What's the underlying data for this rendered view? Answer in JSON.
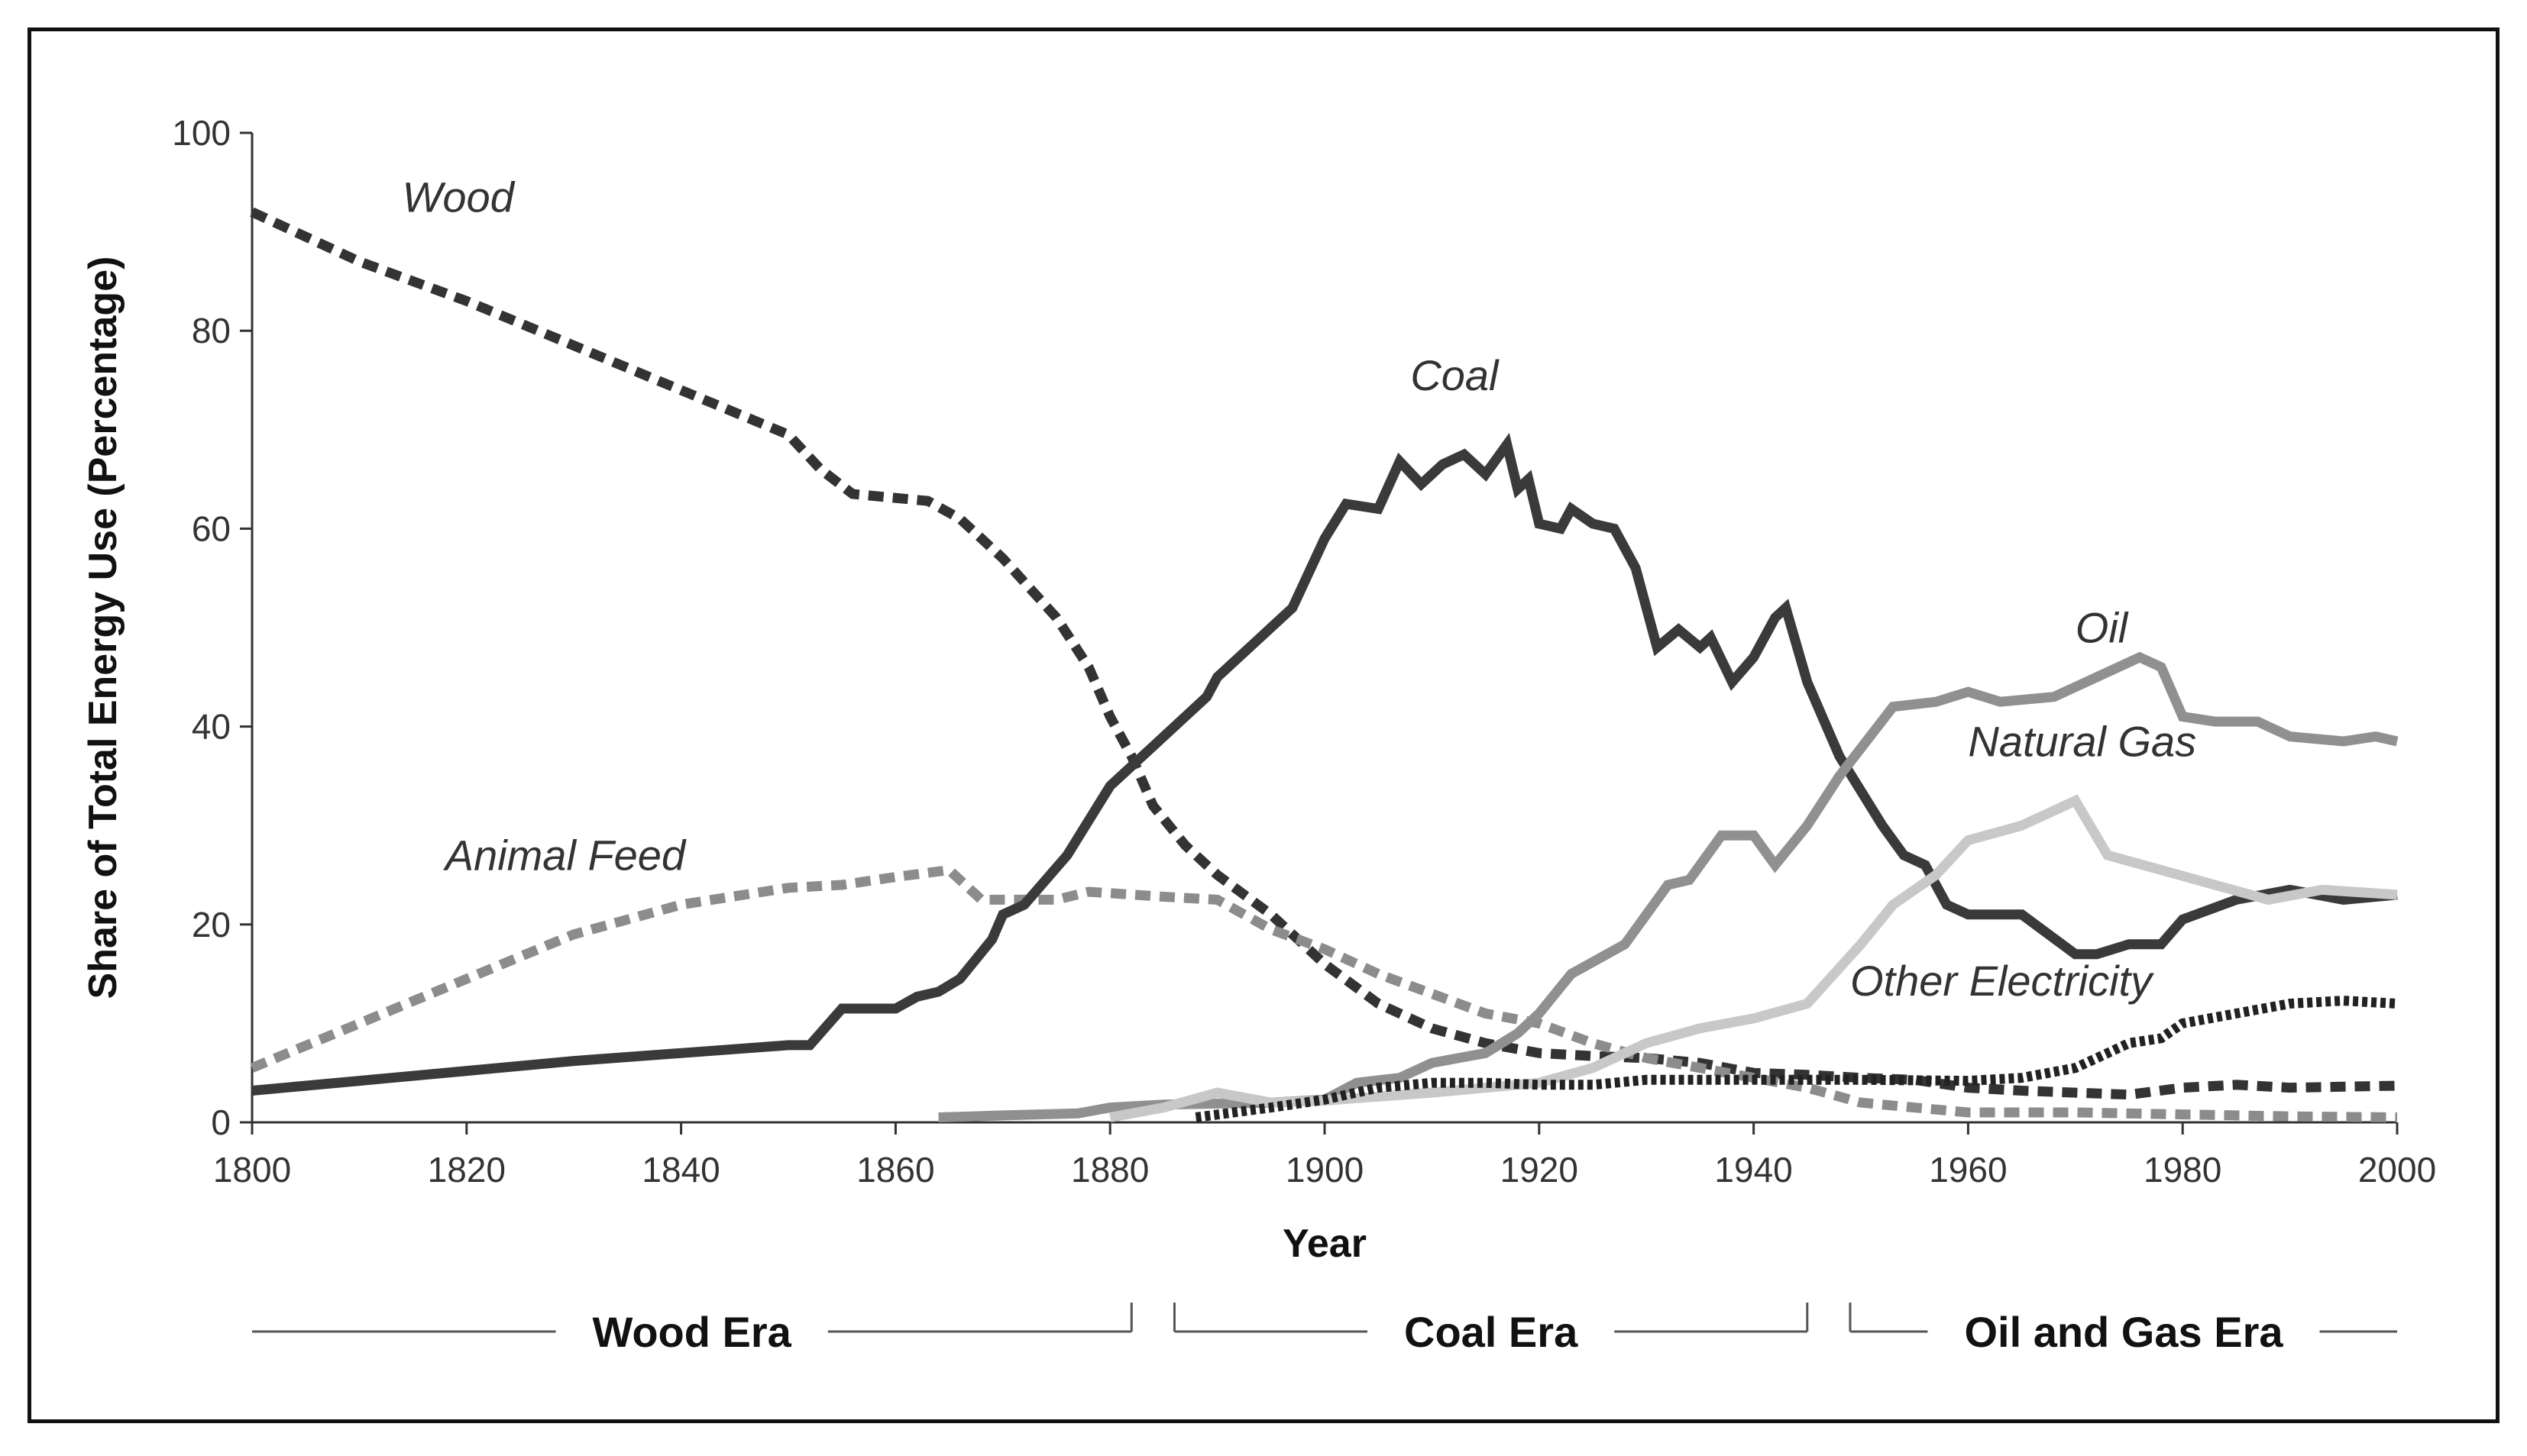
{
  "chart_data": {
    "type": "line",
    "title": "",
    "xlabel": "Year",
    "ylabel": "Share of Total Energy Use (Percentage)",
    "xlim": [
      1800,
      2000
    ],
    "ylim": [
      0,
      100
    ],
    "x_ticks": [
      "1800",
      "1820",
      "1840",
      "1860",
      "1880",
      "1900",
      "1920",
      "1940",
      "1960",
      "1980",
      "2000"
    ],
    "y_ticks": [
      "0",
      "20",
      "40",
      "60",
      "80",
      "100"
    ],
    "series": [
      {
        "name": "Wood",
        "color": "#333333",
        "style": "dashed",
        "points": [
          [
            1800,
            92
          ],
          [
            1810,
            87
          ],
          [
            1820,
            83
          ],
          [
            1830,
            78.5
          ],
          [
            1840,
            74
          ],
          [
            1850,
            69.5
          ],
          [
            1853,
            66
          ],
          [
            1856,
            63.5
          ],
          [
            1863,
            62.8
          ],
          [
            1866,
            61
          ],
          [
            1870,
            57
          ],
          [
            1875,
            51
          ],
          [
            1878,
            46
          ],
          [
            1880,
            41
          ],
          [
            1882,
            37
          ],
          [
            1884,
            32
          ],
          [
            1887,
            28
          ],
          [
            1890,
            25
          ],
          [
            1895,
            21
          ],
          [
            1900,
            16
          ],
          [
            1905,
            12
          ],
          [
            1910,
            9.5
          ],
          [
            1915,
            8
          ],
          [
            1920,
            7
          ],
          [
            1925,
            6.7
          ],
          [
            1930,
            6.5
          ],
          [
            1935,
            6
          ],
          [
            1940,
            5
          ],
          [
            1945,
            4.8
          ],
          [
            1950,
            4.5
          ],
          [
            1955,
            4.3
          ],
          [
            1960,
            3.5
          ],
          [
            1965,
            3.2
          ],
          [
            1970,
            3
          ],
          [
            1975,
            2.8
          ],
          [
            1980,
            3.5
          ],
          [
            1985,
            3.8
          ],
          [
            1990,
            3.5
          ],
          [
            1995,
            3.6
          ],
          [
            2000,
            3.7
          ]
        ]
      },
      {
        "name": "Animal Feed",
        "color": "#8c8c8c",
        "style": "dashed",
        "points": [
          [
            1800,
            5.5
          ],
          [
            1810,
            10
          ],
          [
            1820,
            14.5
          ],
          [
            1830,
            19
          ],
          [
            1840,
            22
          ],
          [
            1850,
            23.7
          ],
          [
            1855,
            24
          ],
          [
            1860,
            24.8
          ],
          [
            1865,
            25.5
          ],
          [
            1868,
            22.5
          ],
          [
            1875,
            22.5
          ],
          [
            1878,
            23.3
          ],
          [
            1885,
            22.8
          ],
          [
            1890,
            22.5
          ],
          [
            1895,
            19.5
          ],
          [
            1900,
            17.5
          ],
          [
            1905,
            15
          ],
          [
            1910,
            13
          ],
          [
            1915,
            11
          ],
          [
            1920,
            10
          ],
          [
            1925,
            8
          ],
          [
            1930,
            6.5
          ],
          [
            1935,
            5.5
          ],
          [
            1940,
            4.5
          ],
          [
            1945,
            3.5
          ],
          [
            1950,
            2
          ],
          [
            1955,
            1.5
          ],
          [
            1960,
            1
          ],
          [
            1970,
            1
          ],
          [
            1980,
            0.8
          ],
          [
            1990,
            0.6
          ],
          [
            2000,
            0.5
          ]
        ]
      },
      {
        "name": "Coal",
        "color": "#3a3a3a",
        "style": "solid",
        "points": [
          [
            1800,
            3.2
          ],
          [
            1810,
            4.2
          ],
          [
            1820,
            5.2
          ],
          [
            1830,
            6.2
          ],
          [
            1840,
            7
          ],
          [
            1850,
            7.8
          ],
          [
            1852,
            7.8
          ],
          [
            1855,
            11.5
          ],
          [
            1860,
            11.5
          ],
          [
            1862,
            12.7
          ],
          [
            1864,
            13.2
          ],
          [
            1866,
            14.5
          ],
          [
            1869,
            18.5
          ],
          [
            1870,
            21
          ],
          [
            1872,
            22
          ],
          [
            1876,
            27
          ],
          [
            1880,
            34
          ],
          [
            1885,
            39
          ],
          [
            1889,
            43
          ],
          [
            1890,
            45
          ],
          [
            1894,
            49
          ],
          [
            1897,
            52
          ],
          [
            1900,
            59
          ],
          [
            1902,
            62.5
          ],
          [
            1905,
            62
          ],
          [
            1907,
            66.8
          ],
          [
            1909,
            64.5
          ],
          [
            1911,
            66.5
          ],
          [
            1913,
            67.5
          ],
          [
            1915,
            65.5
          ],
          [
            1917,
            68.5
          ],
          [
            1918,
            64
          ],
          [
            1919,
            65
          ],
          [
            1920,
            60.5
          ],
          [
            1922,
            60
          ],
          [
            1923,
            62
          ],
          [
            1925,
            60.5
          ],
          [
            1927,
            60
          ],
          [
            1929,
            56
          ],
          [
            1931,
            48
          ],
          [
            1933,
            49.8
          ],
          [
            1935,
            48
          ],
          [
            1936,
            49
          ],
          [
            1938,
            44.5
          ],
          [
            1940,
            47
          ],
          [
            1942,
            51
          ],
          [
            1943,
            52
          ],
          [
            1945,
            44.5
          ],
          [
            1948,
            37
          ],
          [
            1952,
            30
          ],
          [
            1954,
            27
          ],
          [
            1956,
            26
          ],
          [
            1958,
            22
          ],
          [
            1960,
            21
          ],
          [
            1965,
            21
          ],
          [
            1970,
            17
          ],
          [
            1972,
            17
          ],
          [
            1975,
            18
          ],
          [
            1978,
            18
          ],
          [
            1980,
            20.5
          ],
          [
            1985,
            22.5
          ],
          [
            1990,
            23.5
          ],
          [
            1995,
            22.5
          ],
          [
            2000,
            23
          ]
        ]
      },
      {
        "name": "Oil",
        "color": "#909090",
        "style": "solid",
        "points": [
          [
            1864,
            0.5
          ],
          [
            1870,
            0.7
          ],
          [
            1877,
            0.9
          ],
          [
            1880,
            1.5
          ],
          [
            1885,
            1.8
          ],
          [
            1890,
            1.9
          ],
          [
            1895,
            2
          ],
          [
            1900,
            2.3
          ],
          [
            1903,
            4
          ],
          [
            1907,
            4.5
          ],
          [
            1910,
            6
          ],
          [
            1915,
            7
          ],
          [
            1918,
            9
          ],
          [
            1920,
            11
          ],
          [
            1923,
            15
          ],
          [
            1928,
            18
          ],
          [
            1932,
            24
          ],
          [
            1934,
            24.5
          ],
          [
            1937,
            29
          ],
          [
            1940,
            29
          ],
          [
            1942,
            26
          ],
          [
            1945,
            30
          ],
          [
            1948,
            35
          ],
          [
            1953,
            42
          ],
          [
            1957,
            42.5
          ],
          [
            1960,
            43.5
          ],
          [
            1963,
            42.5
          ],
          [
            1968,
            43
          ],
          [
            1972,
            45
          ],
          [
            1976,
            47
          ],
          [
            1978,
            46
          ],
          [
            1980,
            41
          ],
          [
            1983,
            40.5
          ],
          [
            1987,
            40.5
          ],
          [
            1990,
            39
          ],
          [
            1995,
            38.5
          ],
          [
            1998,
            39
          ],
          [
            2000,
            38.5
          ]
        ]
      },
      {
        "name": "Natural Gas",
        "color": "#c8c8c8",
        "style": "solid",
        "points": [
          [
            1880,
            0.5
          ],
          [
            1885,
            1.5
          ],
          [
            1890,
            3
          ],
          [
            1895,
            2
          ],
          [
            1900,
            2.2
          ],
          [
            1910,
            3
          ],
          [
            1920,
            4
          ],
          [
            1925,
            5.5
          ],
          [
            1930,
            8
          ],
          [
            1935,
            9.5
          ],
          [
            1940,
            10.5
          ],
          [
            1945,
            12
          ],
          [
            1950,
            18
          ],
          [
            1953,
            22
          ],
          [
            1957,
            25
          ],
          [
            1960,
            28.5
          ],
          [
            1965,
            30
          ],
          [
            1970,
            32.5
          ],
          [
            1973,
            27
          ],
          [
            1978,
            25.5
          ],
          [
            1983,
            24
          ],
          [
            1988,
            22.5
          ],
          [
            1993,
            23.5
          ],
          [
            2000,
            23
          ]
        ]
      },
      {
        "name": "Other Electricity",
        "color": "#222222",
        "style": "dotted",
        "points": [
          [
            1888,
            0.5
          ],
          [
            1895,
            1.5
          ],
          [
            1900,
            2.3
          ],
          [
            1905,
            3.5
          ],
          [
            1910,
            4
          ],
          [
            1915,
            4
          ],
          [
            1920,
            3.8
          ],
          [
            1925,
            3.8
          ],
          [
            1930,
            4.3
          ],
          [
            1940,
            4.3
          ],
          [
            1950,
            4.3
          ],
          [
            1960,
            4.2
          ],
          [
            1965,
            4.5
          ],
          [
            1970,
            5.5
          ],
          [
            1972,
            6.5
          ],
          [
            1975,
            8
          ],
          [
            1978,
            8.5
          ],
          [
            1980,
            10
          ],
          [
            1985,
            11
          ],
          [
            1990,
            12
          ],
          [
            1995,
            12.3
          ],
          [
            2000,
            12
          ]
        ]
      }
    ],
    "annotations": [
      {
        "text": "Wood",
        "x": 1814,
        "y": 92,
        "series": "Wood"
      },
      {
        "text": "Animal Feed",
        "x": 1818,
        "y": 25.5,
        "series": "Animal Feed"
      },
      {
        "text": "Coal",
        "x": 1908,
        "y": 74,
        "series": "Coal"
      },
      {
        "text": "Oil",
        "x": 1970,
        "y": 48.5,
        "series": "Oil"
      },
      {
        "text": "Natural Gas",
        "x": 1960,
        "y": 37,
        "series": "Natural Gas"
      },
      {
        "text": "Other Electricity",
        "x": 1949,
        "y": 12.8,
        "series": "Other Electricity"
      }
    ],
    "eras": [
      {
        "label": "Wood Era",
        "start": 1800,
        "end": 1882
      },
      {
        "label": "Coal Era",
        "start": 1886,
        "end": 1945
      },
      {
        "label": "Oil and Gas Era",
        "start": 1949,
        "end": 2000
      }
    ]
  }
}
